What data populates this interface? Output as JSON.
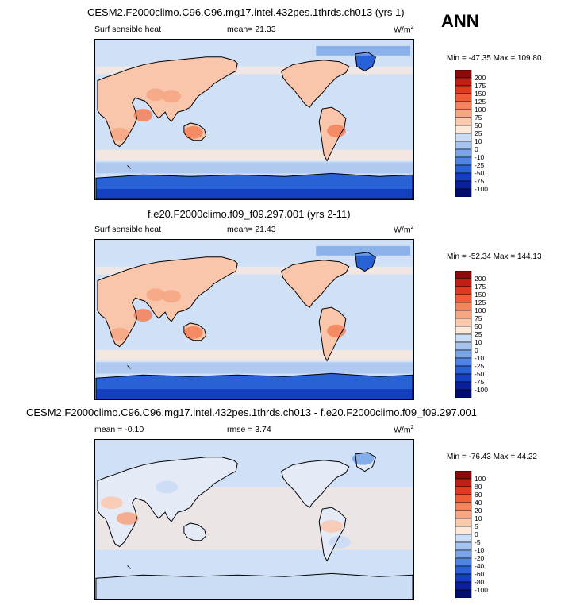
{
  "season": "ANN",
  "panels": [
    {
      "title": "CESM2.F2000climo.C96.C96.mg17.intel.432pes.1thrds.ch013 (yrs 1)",
      "variable": "Surf sensible heat",
      "stat_text": "mean=  21.33",
      "units_base": "W/m",
      "units_sup": "2",
      "minmax": "Min = -47.35 Max = 109.80",
      "levels": [
        "200",
        "175",
        "150",
        "125",
        "100",
        "75",
        "50",
        "25",
        "10",
        "0",
        "-10",
        "-25",
        "-50",
        "-75",
        "-100"
      ],
      "colors": [
        "#8b0a0a",
        "#c41e14",
        "#e03a20",
        "#ef5f37",
        "#f3845c",
        "#f6a683",
        "#fac9ae",
        "#fde8da",
        "#cbdcf5",
        "#a6c3ee",
        "#7aa6e8",
        "#4e85e0",
        "#2961d6",
        "#143fbe",
        "#0a1f9c",
        "#000d6e"
      ]
    },
    {
      "title": "f.e20.F2000climo.f09_f09.297.001 (yrs 2-11)",
      "variable": "Surf sensible heat",
      "stat_text": "mean=  21.43",
      "units_base": "W/m",
      "units_sup": "2",
      "minmax": "Min = -52.34 Max = 144.13",
      "levels": [
        "200",
        "175",
        "150",
        "125",
        "100",
        "75",
        "50",
        "25",
        "10",
        "0",
        "-10",
        "-25",
        "-50",
        "-75",
        "-100"
      ],
      "colors": [
        "#8b0a0a",
        "#c41e14",
        "#e03a20",
        "#ef5f37",
        "#f3845c",
        "#f6a683",
        "#fac9ae",
        "#fde8da",
        "#cbdcf5",
        "#a6c3ee",
        "#7aa6e8",
        "#4e85e0",
        "#2961d6",
        "#143fbe",
        "#0a1f9c",
        "#000d6e"
      ]
    },
    {
      "title": "CESM2.F2000climo.C96.C96.mg17.intel.432pes.1thrds.ch013 - f.e20.F2000climo.f09_f09.297.001",
      "variable": "mean =  -0.10",
      "stat_text": "rmse =  3.74",
      "units_base": "W/m",
      "units_sup": "2",
      "minmax": "Min = -76.43 Max =  44.22",
      "levels": [
        "100",
        "80",
        "60",
        "40",
        "20",
        "10",
        "5",
        "0",
        "-5",
        "-10",
        "-20",
        "-40",
        "-60",
        "-80",
        "-100"
      ],
      "colors": [
        "#8b0a0a",
        "#c41e14",
        "#e03a20",
        "#ef5f37",
        "#f3845c",
        "#f6a683",
        "#fac9ae",
        "#fde8da",
        "#cbdcf5",
        "#a6c3ee",
        "#7aa6e8",
        "#4e85e0",
        "#2961d6",
        "#143fbe",
        "#0a1f9c",
        "#000d6e"
      ]
    }
  ]
}
